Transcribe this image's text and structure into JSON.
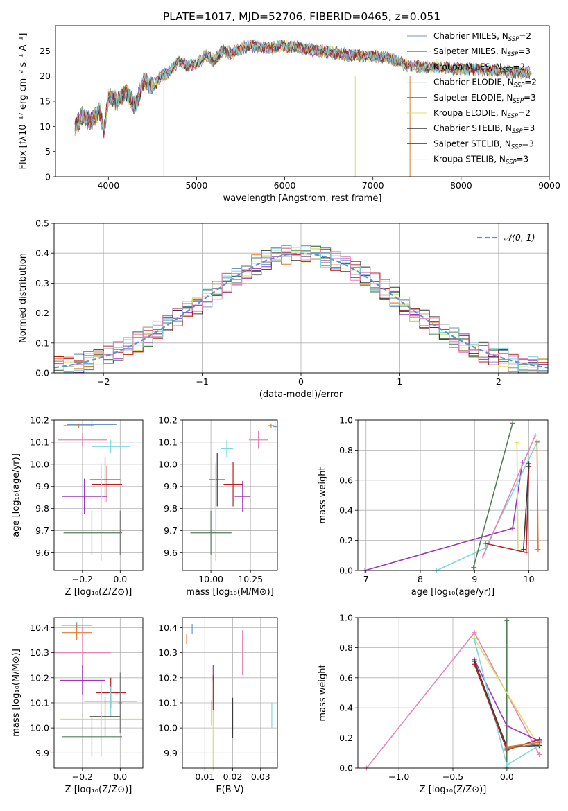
{
  "figure": {
    "title": "PLATE=1017, MJD=52706, FIBERID=0465, z=0.051"
  },
  "colors": {
    "Chabrier MILES": "#6f96c6",
    "Salpeter MILES": "#7a7a7a",
    "Kroupa MILES": "#e07a2a",
    "Chabrier ELODIE": "#4f7f55",
    "Salpeter ELODIE": "#9b38b8",
    "Kroupa ELODIE": "#d8e062",
    "Chabrier STELIB": "#3a3a3a",
    "Salpeter STELIB": "#b81f1f",
    "Kroupa STELIB": "#7ad8de",
    "Extra": "#e584b8"
  },
  "chart_data": [
    {
      "type": "line",
      "id": "spectrum",
      "xlabel": "wavelength [Angstrom, rest frame]",
      "ylabel": "Flux [fλ10⁻¹⁷ erg cm⁻² s⁻¹ A⁻¹]",
      "xlim": [
        3400,
        9000
      ],
      "ylim": [
        0,
        30
      ],
      "xticks": [
        4000,
        5000,
        6000,
        7000,
        8000,
        9000
      ],
      "yticks": [
        0,
        5,
        10,
        15,
        20,
        25
      ],
      "x_points": [
        3620,
        3700,
        3800,
        3900,
        3950,
        4000,
        4100,
        4200,
        4300,
        4400,
        4500,
        4600,
        4700,
        4800,
        4900,
        5000,
        5100,
        5200,
        5300,
        5400,
        5500,
        5600,
        5800,
        6000,
        6200,
        6400,
        6600,
        6800,
        7000,
        7200,
        7400
      ],
      "y_points": [
        10,
        12,
        11,
        13,
        9,
        16,
        15,
        17,
        14,
        19,
        18,
        20,
        21,
        23,
        22,
        22.5,
        24,
        23,
        25,
        24.5,
        25.5,
        26,
        25.5,
        26,
        25.5,
        25,
        24.5,
        24,
        24,
        23.5,
        22
      ],
      "series_names": [
        "Chabrier MILES",
        "Salpeter MILES",
        "Kroupa MILES",
        "Chabrier ELODIE",
        "Salpeter ELODIE",
        "Kroupa ELODIE",
        "Chabrier STELIB",
        "Salpeter STELIB",
        "Kroupa STELIB"
      ],
      "series": [
        {
          "name": "Chabrier MILES",
          "legend": "Chabrier MILES, N",
          "nssp": "=2"
        },
        {
          "name": "Salpeter MILES",
          "legend": "Salpeter MILES, N",
          "nssp": "=3"
        },
        {
          "name": "Kroupa MILES",
          "legend": "Kroupa MILES, N",
          "nssp": "=2"
        },
        {
          "name": "Chabrier ELODIE",
          "legend": "Chabrier ELODIE, N",
          "nssp": "=2"
        },
        {
          "name": "Salpeter ELODIE",
          "legend": "Salpeter ELODIE, N",
          "nssp": "=3"
        },
        {
          "name": "Kroupa ELODIE",
          "legend": "Kroupa ELODIE, N",
          "nssp": "=2"
        },
        {
          "name": "Chabrier STELIB",
          "legend": "Chabrier STELIB, N",
          "nssp": "=3"
        },
        {
          "name": "Salpeter STELIB",
          "legend": "Salpeter STELIB, N",
          "nssp": "=3"
        },
        {
          "name": "Kroupa STELIB",
          "legend": "Kroupa STELIB, N",
          "nssp": "=3"
        }
      ],
      "spikes": [
        {
          "x": 4630,
          "series": "Salpeter MILES"
        },
        {
          "x": 6800,
          "series": "Kroupa ELODIE"
        },
        {
          "x": 7420,
          "series": "Kroupa MILES"
        }
      ],
      "legend_loc": "upper right",
      "legend_subscript": "SSP"
    },
    {
      "type": "line",
      "id": "residuals",
      "xlabel": "(data-model)/error",
      "ylabel": "Normed distribution",
      "xlim": [
        -2.5,
        2.5
      ],
      "ylim": [
        0,
        0.5
      ],
      "xticks": [
        -2,
        -1,
        0,
        1,
        2
      ],
      "yticks": [
        0.0,
        0.1,
        0.2,
        0.3,
        0.4,
        0.5
      ],
      "legend": "𝒩(0, 1)",
      "legend_loc": "upper right",
      "grid": true
    },
    {
      "type": "scatter",
      "id": "age-vs-Z",
      "xlabel": "Z [log₁₀(Z/Z⊙)]",
      "ylabel": "age  [log₁₀(age/yr)]",
      "xlim": [
        -0.35,
        0.12
      ],
      "ylim": [
        9.52,
        10.2
      ],
      "xticks": [
        -0.2,
        0.0
      ],
      "yticks": [
        9.6,
        9.7,
        9.8,
        9.9,
        10.0,
        10.1,
        10.2
      ],
      "points": [
        {
          "series": "Chabrier MILES",
          "x": -0.15,
          "y": 10.18,
          "xerr": 0.13,
          "yerr": 0.02
        },
        {
          "series": "Kroupa MILES",
          "x": -0.22,
          "y": 10.175,
          "xerr": 0.08,
          "yerr": 0.01
        },
        {
          "series": "Extra",
          "x": -0.2,
          "y": 10.11,
          "xerr": 0.13,
          "yerr": 0.03
        },
        {
          "series": "Kroupa STELIB",
          "x": -0.05,
          "y": 10.08,
          "xerr": 0.1,
          "yerr": 0.03
        },
        {
          "series": "Salpeter ELODIE",
          "x": -0.19,
          "y": 9.855,
          "xerr": 0.12,
          "yerr": 0.08
        },
        {
          "series": "Chabrier STELIB",
          "x": -0.08,
          "y": 9.93,
          "xerr": 0.08,
          "yerr": 0.1
        },
        {
          "series": "Salpeter STELIB",
          "x": -0.07,
          "y": 9.91,
          "xerr": 0.08,
          "yerr": 0.08
        },
        {
          "series": "Kroupa ELODIE",
          "x": -0.1,
          "y": 9.785,
          "xerr": 0.22,
          "yerr": 0.22
        },
        {
          "series": "Chabrier ELODIE",
          "x": -0.15,
          "y": 9.69,
          "xerr": 0.15,
          "yerr": 0.1
        },
        {
          "series": "Salpeter MILES",
          "x": 0.0,
          "y": 9.69,
          "xerr": 0.01,
          "yerr": 0.1
        }
      ]
    },
    {
      "type": "scatter",
      "id": "age-vs-mass",
      "xlabel": "mass [log₁₀(M/M⊙)]",
      "ylabel": "",
      "xlim": [
        9.82,
        10.42
      ],
      "ylim": [
        9.52,
        10.2
      ],
      "xticks": [
        10.0,
        10.25
      ],
      "yticks": [
        9.6,
        9.7,
        9.8,
        9.9,
        10.0,
        10.1,
        10.2
      ],
      "points": [
        {
          "series": "Chabrier MILES",
          "x": 10.405,
          "y": 10.17,
          "xerr": 0.01,
          "yerr": 0.02
        },
        {
          "series": "Kroupa MILES",
          "x": 10.38,
          "y": 10.175,
          "xerr": 0.02,
          "yerr": 0.01
        },
        {
          "series": "Extra",
          "x": 10.3,
          "y": 10.11,
          "xerr": 0.06,
          "yerr": 0.04
        },
        {
          "series": "Kroupa STELIB",
          "x": 10.1,
          "y": 10.07,
          "xerr": 0.04,
          "yerr": 0.04
        },
        {
          "series": "Salpeter ELODIE",
          "x": 10.2,
          "y": 9.855,
          "xerr": 0.05,
          "yerr": 0.07
        },
        {
          "series": "Chabrier STELIB",
          "x": 10.04,
          "y": 9.93,
          "xerr": 0.05,
          "yerr": 0.12
        },
        {
          "series": "Salpeter STELIB",
          "x": 10.14,
          "y": 9.91,
          "xerr": 0.06,
          "yerr": 0.1
        },
        {
          "series": "Kroupa ELODIE",
          "x": 10.03,
          "y": 9.785,
          "xerr": 0.1,
          "yerr": 0.22
        },
        {
          "series": "Chabrier ELODIE",
          "x": 10.0,
          "y": 9.69,
          "xerr": 0.13,
          "yerr": 0.1
        }
      ]
    },
    {
      "type": "line",
      "id": "weight-vs-age",
      "xlabel": "age  [log₁₀(age/yr)]",
      "ylabel": "mass weight",
      "xlim": [
        6.85,
        10.35
      ],
      "ylim": [
        0,
        1.0
      ],
      "xticks": [
        7,
        8,
        9,
        10
      ],
      "yticks": [
        0.0,
        0.2,
        0.4,
        0.6,
        0.8,
        1.0
      ],
      "series": [
        {
          "name": "Salpeter ELODIE",
          "x": [
            6.98,
            9.7,
            9.88
          ],
          "y": [
            0.0,
            0.28,
            0.72
          ]
        },
        {
          "name": "Kroupa STELIB",
          "x": [
            8.3,
            9.2,
            10.15
          ],
          "y": [
            0.0,
            0.15,
            0.85
          ]
        },
        {
          "name": "Chabrier ELODIE",
          "x": [
            8.98,
            9.7
          ],
          "y": [
            0.02,
            0.98
          ]
        },
        {
          "name": "Kroupa ELODIE",
          "x": [
            9.78,
            9.8
          ],
          "y": [
            0.85,
            0.15
          ]
        },
        {
          "name": "Extra",
          "x": [
            9.15,
            10.12
          ],
          "y": [
            0.09,
            0.9
          ]
        },
        {
          "name": "Salpeter STELIB",
          "x": [
            9.2,
            9.95,
            10.0
          ],
          "y": [
            0.18,
            0.12,
            0.69
          ]
        },
        {
          "name": "Chabrier STELIB",
          "x": [
            9.9,
            10.0
          ],
          "y": [
            0.14,
            0.71
          ]
        },
        {
          "name": "Kroupa MILES",
          "x": [
            10.15,
            10.17
          ],
          "y": [
            0.86,
            0.14
          ]
        }
      ]
    },
    {
      "type": "scatter",
      "id": "mass-vs-Z",
      "xlabel": "Z [log₁₀(Z/Z⊙)]",
      "ylabel": "mass [log₁₀(M/M⊙)]",
      "xlim": [
        -0.35,
        0.12
      ],
      "ylim": [
        9.84,
        10.44
      ],
      "xticks": [
        -0.2,
        0.0
      ],
      "yticks": [
        9.9,
        10.0,
        10.1,
        10.2,
        10.3,
        10.4
      ],
      "points": [
        {
          "series": "Chabrier MILES",
          "x": -0.23,
          "y": 10.41,
          "xerr": 0.08,
          "yerr": 0.01
        },
        {
          "series": "Kroupa MILES",
          "x": -0.23,
          "y": 10.38,
          "xerr": 0.08,
          "yerr": 0.03
        },
        {
          "series": "Extra",
          "x": -0.2,
          "y": 10.3,
          "xerr": 0.15,
          "yerr": 0.1
        },
        {
          "series": "Salpeter ELODIE",
          "x": -0.2,
          "y": 10.19,
          "xerr": 0.12,
          "yerr": 0.06
        },
        {
          "series": "Salpeter STELIB",
          "x": -0.05,
          "y": 10.14,
          "xerr": 0.08,
          "yerr": 0.06
        },
        {
          "series": "Kroupa STELIB",
          "x": -0.05,
          "y": 10.105,
          "xerr": 0.14,
          "yerr": 0.06
        },
        {
          "series": "Chabrier STELIB",
          "x": -0.08,
          "y": 10.045,
          "xerr": 0.08,
          "yerr": 0.08
        },
        {
          "series": "Kroupa ELODIE",
          "x": -0.1,
          "y": 10.035,
          "xerr": 0.22,
          "yerr": 0.15
        },
        {
          "series": "Chabrier ELODIE",
          "x": -0.15,
          "y": 9.965,
          "xerr": 0.16,
          "yerr": 0.08
        },
        {
          "series": "Salpeter MILES",
          "x": 0.0,
          "y": 10.1,
          "xerr": 0.01,
          "yerr": 0.12
        }
      ]
    },
    {
      "type": "scatter",
      "id": "mass-vs-ebv",
      "xlabel": "E(B-V)",
      "ylabel": "",
      "xlim": [
        0.002,
        0.036
      ],
      "ylim": [
        9.84,
        10.44
      ],
      "xticks": [
        0.01,
        0.02,
        0.03
      ],
      "yticks": [
        9.9,
        10.0,
        10.1,
        10.2,
        10.3,
        10.4
      ],
      "points": [
        {
          "series": "Chabrier MILES",
          "x": 0.0055,
          "y": 10.395,
          "yerr": 0.02
        },
        {
          "series": "Kroupa MILES",
          "x": 0.0035,
          "y": 10.355,
          "yerr": 0.02
        },
        {
          "series": "Extra",
          "x": 0.0235,
          "y": 10.3,
          "yerr": 0.09
        },
        {
          "series": "Salpeter ELODIE",
          "x": 0.013,
          "y": 10.22,
          "yerr": 0.03
        },
        {
          "series": "Salpeter STELIB",
          "x": 0.013,
          "y": 10.14,
          "yerr": 0.07
        },
        {
          "series": "Chabrier STELIB",
          "x": 0.02,
          "y": 10.04,
          "yerr": 0.08
        },
        {
          "series": "Kroupa STELIB",
          "x": 0.034,
          "y": 10.05,
          "yerr": 0.05
        },
        {
          "series": "Chabrier ELODIE",
          "x": 0.0125,
          "y": 10.06,
          "yerr": 0.05
        },
        {
          "series": "Kroupa ELODIE",
          "x": 0.013,
          "y": 9.95,
          "yerr": 0.12
        }
      ]
    },
    {
      "type": "line",
      "id": "weight-vs-Z",
      "xlabel": "Z [log₁₀(Z/Z⊙)]",
      "ylabel": "mass weight",
      "xlim": [
        -1.38,
        0.38
      ],
      "ylim": [
        0,
        1.0
      ],
      "xticks": [
        -1.0,
        -0.5,
        0.0
      ],
      "yticks": [
        0.0,
        0.2,
        0.4,
        0.6,
        0.8,
        1.0
      ],
      "series": [
        {
          "name": "Extra",
          "x": [
            -1.3,
            -0.3,
            0.3
          ],
          "y": [
            0.0,
            0.9,
            0.09
          ]
        },
        {
          "name": "Chabrier ELODIE",
          "x": [
            0.0,
            0.0
          ],
          "y": [
            0.0,
            0.98
          ]
        },
        {
          "name": "Kroupa ELODIE",
          "x": [
            -0.3,
            0.3
          ],
          "y": [
            0.86,
            0.14
          ]
        },
        {
          "name": "Salpeter ELODIE",
          "x": [
            -0.3,
            0.0,
            0.3
          ],
          "y": [
            0.72,
            0.28,
            0.18
          ]
        },
        {
          "name": "Kroupa STELIB",
          "x": [
            -0.3,
            0.0,
            0.3
          ],
          "y": [
            0.85,
            0.02,
            0.15
          ]
        },
        {
          "name": "Salpeter STELIB",
          "x": [
            -0.3,
            0.0,
            0.3
          ],
          "y": [
            0.69,
            0.12,
            0.19
          ]
        },
        {
          "name": "Chabrier STELIB",
          "x": [
            -0.3,
            0.0,
            0.3
          ],
          "y": [
            0.71,
            0.14,
            0.15
          ]
        },
        {
          "name": "Kroupa MILES",
          "x": [
            0.0,
            0.3
          ],
          "y": [
            0.14,
            0.17
          ]
        },
        {
          "name": "Salpeter MILES",
          "x": [
            0.0,
            0.3
          ],
          "y": [
            0.13,
            0.16
          ]
        }
      ]
    }
  ]
}
